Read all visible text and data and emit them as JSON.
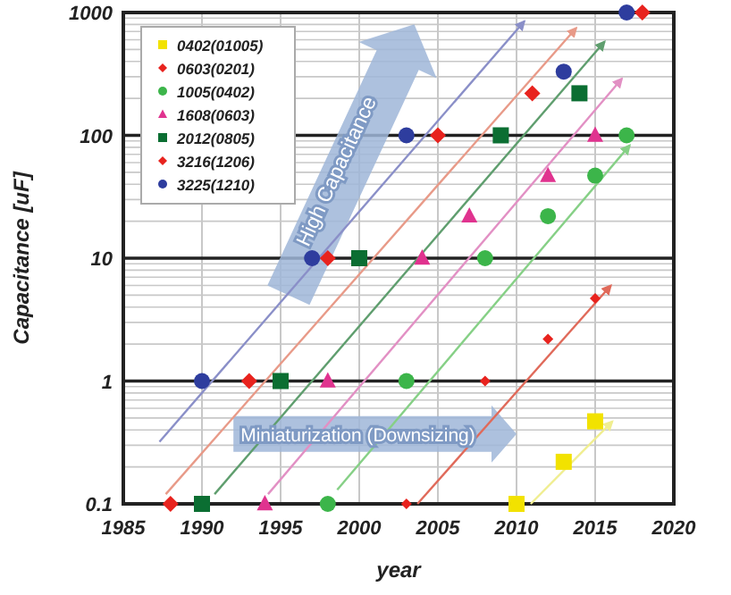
{
  "chart_data": {
    "type": "scatter",
    "xlabel": "year",
    "ylabel": "Capacitance [uF]",
    "log": "y",
    "grid": true,
    "legend": "top left",
    "xlim": [
      1985,
      2020
    ],
    "xticks": [
      1985,
      1990,
      1995,
      2000,
      2005,
      2010,
      2015,
      2020
    ],
    "ylim": [
      0.1,
      1000
    ],
    "yticks": [
      0.1,
      1,
      10,
      100,
      1000
    ],
    "annotations": [
      "High Capacitance",
      "Miniaturization (Downsizing)"
    ],
    "series": [
      {
        "name": "0402(01005)",
        "marker": "square",
        "color": "#f2e200",
        "x": [
          2010,
          2013,
          2015
        ],
        "values": [
          0.1,
          0.22,
          0.47
        ]
      },
      {
        "name": "0603(0201)",
        "marker": "diamond",
        "color": "#e8231e",
        "x": [
          2003,
          2008,
          2012,
          2015
        ],
        "values": [
          0.1,
          1,
          2.2,
          4.7
        ]
      },
      {
        "name": "1005(0402)",
        "marker": "circle",
        "color": "#3cb54a",
        "x": [
          1998,
          2003,
          2008,
          2012,
          2015,
          2017
        ],
        "values": [
          0.1,
          1,
          10,
          22,
          47,
          100
        ]
      },
      {
        "name": "1608(0603)",
        "marker": "triangle",
        "color": "#e0338f",
        "x": [
          1994,
          1998,
          2004,
          2007,
          2012,
          2015
        ],
        "values": [
          0.1,
          1,
          10,
          22,
          47,
          100
        ]
      },
      {
        "name": "2012(0805)",
        "marker": "square",
        "color": "#0b6e32",
        "x": [
          1990,
          1995,
          2000,
          2009,
          2014
        ],
        "values": [
          0.1,
          1,
          10,
          100,
          220
        ]
      },
      {
        "name": "3216(1206)",
        "marker": "diamond",
        "color": "#e8231e",
        "x": [
          1988,
          1993,
          1998,
          2005,
          2011,
          2018
        ],
        "values": [
          0.1,
          1,
          10,
          100,
          220,
          1000
        ]
      },
      {
        "name": "3225(1210)",
        "marker": "circle",
        "color": "#2e3d9e",
        "x": [
          1990,
          1997,
          2003,
          2013,
          2017
        ],
        "values": [
          1,
          10,
          100,
          330,
          1000
        ]
      },
      {
        "type": "line",
        "color": "#8a8fc8",
        "x": [
          1987.3,
          2010.5
        ],
        "values": [
          0.32,
          850
        ]
      },
      {
        "type": "line",
        "color": "#e89a88",
        "x": [
          1987.7,
          2013.8
        ],
        "values": [
          0.12,
          750
        ]
      },
      {
        "type": "line",
        "color": "#5f9e6e",
        "x": [
          1990.8,
          2015.6
        ],
        "values": [
          0.12,
          580
        ]
      },
      {
        "type": "line",
        "color": "#e290c4",
        "x": [
          1994.2,
          2016.7
        ],
        "values": [
          0.12,
          290
        ]
      },
      {
        "type": "line",
        "color": "#86d086",
        "x": [
          1998.6,
          2017.2
        ],
        "values": [
          0.13,
          83
        ]
      },
      {
        "type": "line",
        "color": "#e06a5a",
        "x": [
          2003.7,
          2016
        ],
        "values": [
          0.1,
          6
        ]
      },
      {
        "type": "line",
        "color": "#f0ee90",
        "x": [
          2010.9,
          2016.1
        ],
        "values": [
          0.1,
          0.47
        ]
      }
    ]
  }
}
